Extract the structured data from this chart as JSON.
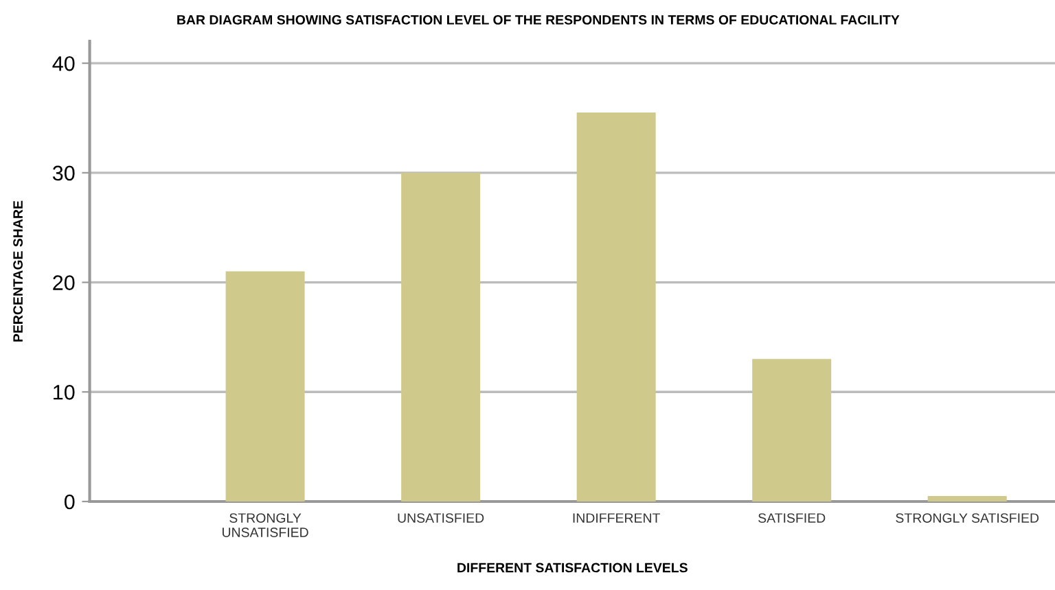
{
  "chart_data": {
    "type": "bar",
    "title": "BAR DIAGRAM SHOWING SATISFACTION LEVEL OF THE RESPONDENTS IN TERMS OF EDUCATIONAL FACILITY",
    "xlabel": "DIFFERENT SATISFACTION LEVELS",
    "ylabel": "PERCENTAGE SHARE",
    "categories": [
      "STRONGLY\nUNSATISFIED",
      "UNSATISFIED",
      "INDIFFERENT",
      "SATISFIED",
      "STRONGLY SATISFIED"
    ],
    "values": [
      21,
      30,
      35.5,
      13,
      0.5
    ],
    "color": "#cfca8c",
    "ylim": [
      0,
      42
    ],
    "yticks": [
      0,
      10,
      20,
      30,
      40
    ],
    "grid": "y"
  }
}
